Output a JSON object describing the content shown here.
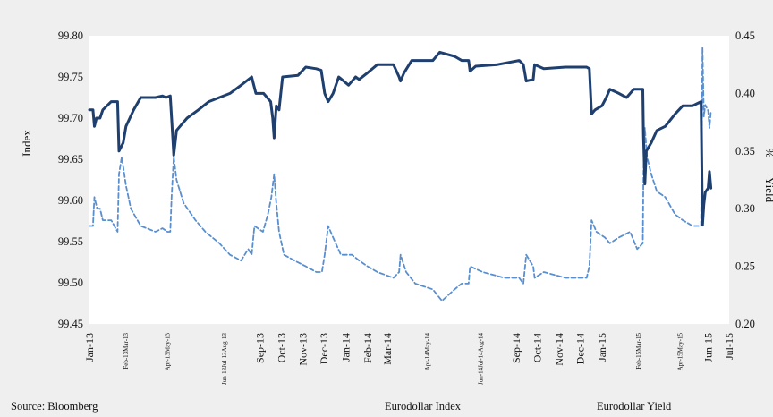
{
  "chart_data": {
    "type": "line",
    "title": "",
    "ylabel": "Index",
    "y2label_parts": [
      "%",
      "Yield"
    ],
    "ylim": [
      99.45,
      99.8
    ],
    "y_ticks": [
      "99.45",
      "99.50",
      "99.55",
      "99.60",
      "99.65",
      "99.70",
      "99.75",
      "99.80"
    ],
    "y2lim": [
      0.2,
      0.45
    ],
    "y2_ticks": [
      "0.20",
      "0.25",
      "0.30",
      "0.35",
      "0.40",
      "0.45"
    ],
    "x_range": [
      "2013-01-01",
      "2015-07-01"
    ],
    "x_ticks": [
      {
        "label": "Jan-13",
        "date": "2013-01-01",
        "size": "normal"
      },
      {
        "label": "Feb-13Mar-13",
        "date": "2013-02-20",
        "size": "tiny"
      },
      {
        "label": "Apr-13May-13",
        "date": "2013-04-20",
        "size": "tiny"
      },
      {
        "label": "Jun-13Jul-13Aug-13",
        "date": "2013-07-10",
        "size": "tiny"
      },
      {
        "label": "Sep-13",
        "date": "2013-09-01",
        "size": "normal"
      },
      {
        "label": "Oct-13",
        "date": "2013-10-01",
        "size": "normal"
      },
      {
        "label": "Nov-13",
        "date": "2013-11-01",
        "size": "normal"
      },
      {
        "label": "Dec-13",
        "date": "2013-12-01",
        "size": "normal"
      },
      {
        "label": "Jan-14",
        "date": "2014-01-01",
        "size": "normal"
      },
      {
        "label": "Feb-14",
        "date": "2014-02-01",
        "size": "normal"
      },
      {
        "label": "Mar-14",
        "date": "2014-03-01",
        "size": "normal"
      },
      {
        "label": "Apr-14May-14",
        "date": "2014-04-25",
        "size": "tiny"
      },
      {
        "label": "Jun-14Jul-14Aug-14",
        "date": "2014-07-10",
        "size": "tiny"
      },
      {
        "label": "Sep-14",
        "date": "2014-09-01",
        "size": "normal"
      },
      {
        "label": "Oct-14",
        "date": "2014-10-01",
        "size": "normal"
      },
      {
        "label": "Nov-14",
        "date": "2014-11-01",
        "size": "normal"
      },
      {
        "label": "Dec-14",
        "date": "2014-12-01",
        "size": "normal"
      },
      {
        "label": "Jan-15",
        "date": "2015-01-01",
        "size": "normal"
      },
      {
        "label": "Feb-15Mar-15",
        "date": "2015-02-20",
        "size": "tiny"
      },
      {
        "label": "Apr-15May-15",
        "date": "2015-04-20",
        "size": "tiny"
      },
      {
        "label": "Jun-15",
        "date": "2015-06-01",
        "size": "normal"
      },
      {
        "label": "Jul-15",
        "date": "2015-07-01",
        "size": "normal"
      }
    ],
    "grid": false,
    "legend_position": "bottom",
    "series": [
      {
        "name": "Eurodollar Index",
        "axis": "left",
        "color": "#1f3f6e",
        "style": "solid",
        "points": [
          [
            "2013-01-01",
            99.71
          ],
          [
            "2013-01-06",
            99.71
          ],
          [
            "2013-01-08",
            99.69
          ],
          [
            "2013-01-11",
            99.7
          ],
          [
            "2013-01-16",
            99.7
          ],
          [
            "2013-01-20",
            99.71
          ],
          [
            "2013-02-01",
            99.72
          ],
          [
            "2013-02-10",
            99.72
          ],
          [
            "2013-02-12",
            99.66
          ],
          [
            "2013-02-18",
            99.67
          ],
          [
            "2013-02-22",
            99.69
          ],
          [
            "2013-03-05",
            99.71
          ],
          [
            "2013-03-15",
            99.725
          ],
          [
            "2013-04-05",
            99.725
          ],
          [
            "2013-04-15",
            99.727
          ],
          [
            "2013-04-20",
            99.725
          ],
          [
            "2013-04-26",
            99.727
          ],
          [
            "2013-04-28",
            99.7
          ],
          [
            "2013-05-01",
            99.655
          ],
          [
            "2013-05-05",
            99.685
          ],
          [
            "2013-05-10",
            99.69
          ],
          [
            "2013-05-20",
            99.7
          ],
          [
            "2013-06-05",
            99.71
          ],
          [
            "2013-06-20",
            99.72
          ],
          [
            "2013-07-05",
            99.725
          ],
          [
            "2013-07-20",
            99.73
          ],
          [
            "2013-08-05",
            99.74
          ],
          [
            "2013-08-20",
            99.75
          ],
          [
            "2013-08-26",
            99.73
          ],
          [
            "2013-09-06",
            99.73
          ],
          [
            "2013-09-16",
            99.72
          ],
          [
            "2013-09-19",
            99.7
          ],
          [
            "2013-09-21",
            99.676
          ],
          [
            "2013-09-24",
            99.715
          ],
          [
            "2013-09-28",
            99.71
          ],
          [
            "2013-10-03",
            99.75
          ],
          [
            "2013-10-25",
            99.752
          ],
          [
            "2013-11-05",
            99.762
          ],
          [
            "2013-11-20",
            99.76
          ],
          [
            "2013-11-27",
            99.758
          ],
          [
            "2013-12-02",
            99.73
          ],
          [
            "2013-12-07",
            99.72
          ],
          [
            "2013-12-14",
            99.73
          ],
          [
            "2013-12-22",
            99.75
          ],
          [
            "2014-01-05",
            99.74
          ],
          [
            "2014-01-15",
            99.75
          ],
          [
            "2014-01-20",
            99.747
          ],
          [
            "2014-02-01",
            99.755
          ],
          [
            "2014-02-15",
            99.765
          ],
          [
            "2014-03-10",
            99.765
          ],
          [
            "2014-03-18",
            99.75
          ],
          [
            "2014-03-20",
            99.745
          ],
          [
            "2014-03-25",
            99.755
          ],
          [
            "2014-04-05",
            99.77
          ],
          [
            "2014-05-05",
            99.77
          ],
          [
            "2014-05-15",
            99.78
          ],
          [
            "2014-06-05",
            99.775
          ],
          [
            "2014-06-15",
            99.77
          ],
          [
            "2014-06-25",
            99.77
          ],
          [
            "2014-06-27",
            99.757
          ],
          [
            "2014-07-05",
            99.763
          ],
          [
            "2014-08-05",
            99.765
          ],
          [
            "2014-09-05",
            99.77
          ],
          [
            "2014-09-11",
            99.765
          ],
          [
            "2014-09-15",
            99.745
          ],
          [
            "2014-09-25",
            99.747
          ],
          [
            "2014-09-27",
            99.765
          ],
          [
            "2014-10-10",
            99.76
          ],
          [
            "2014-11-10",
            99.762
          ],
          [
            "2014-12-10",
            99.762
          ],
          [
            "2014-12-14",
            99.76
          ],
          [
            "2014-12-17",
            99.705
          ],
          [
            "2014-12-22",
            99.71
          ],
          [
            "2015-01-01",
            99.715
          ],
          [
            "2015-01-07",
            99.725
          ],
          [
            "2015-01-12",
            99.735
          ],
          [
            "2015-01-25",
            99.73
          ],
          [
            "2015-02-05",
            99.725
          ],
          [
            "2015-02-15",
            99.735
          ],
          [
            "2015-02-28",
            99.735
          ],
          [
            "2015-03-01",
            99.68
          ],
          [
            "2015-03-03",
            99.62
          ],
          [
            "2015-03-05",
            99.66
          ],
          [
            "2015-03-12",
            99.67
          ],
          [
            "2015-03-20",
            99.685
          ],
          [
            "2015-04-01",
            99.69
          ],
          [
            "2015-04-15",
            99.705
          ],
          [
            "2015-04-26",
            99.715
          ],
          [
            "2015-05-10",
            99.715
          ],
          [
            "2015-05-22",
            99.72
          ],
          [
            "2015-05-24",
            99.57
          ],
          [
            "2015-05-26",
            99.595
          ],
          [
            "2015-05-28",
            99.61
          ],
          [
            "2015-06-01",
            99.615
          ],
          [
            "2015-06-03",
            99.635
          ],
          [
            "2015-06-05",
            99.615
          ]
        ]
      },
      {
        "name": "Eurodollar Yield",
        "axis": "right",
        "color": "#5a8fcf",
        "style": "dashed",
        "points": [
          [
            "2013-01-01",
            0.285
          ],
          [
            "2013-01-06",
            0.285
          ],
          [
            "2013-01-08",
            0.31
          ],
          [
            "2013-01-12",
            0.3
          ],
          [
            "2013-01-16",
            0.3
          ],
          [
            "2013-01-20",
            0.29
          ],
          [
            "2013-02-01",
            0.29
          ],
          [
            "2013-02-10",
            0.28
          ],
          [
            "2013-02-12",
            0.33
          ],
          [
            "2013-02-16",
            0.345
          ],
          [
            "2013-02-22",
            0.32
          ],
          [
            "2013-03-01",
            0.3
          ],
          [
            "2013-03-15",
            0.285
          ],
          [
            "2013-04-05",
            0.28
          ],
          [
            "2013-04-15",
            0.283
          ],
          [
            "2013-04-22",
            0.28
          ],
          [
            "2013-04-26",
            0.28
          ],
          [
            "2013-04-28",
            0.31
          ],
          [
            "2013-05-01",
            0.345
          ],
          [
            "2013-05-05",
            0.325
          ],
          [
            "2013-05-15",
            0.305
          ],
          [
            "2013-06-01",
            0.29
          ],
          [
            "2013-06-15",
            0.28
          ],
          [
            "2013-07-05",
            0.27
          ],
          [
            "2013-07-20",
            0.26
          ],
          [
            "2013-08-05",
            0.255
          ],
          [
            "2013-08-15",
            0.265
          ],
          [
            "2013-08-20",
            0.26
          ],
          [
            "2013-08-24",
            0.285
          ],
          [
            "2013-09-05",
            0.28
          ],
          [
            "2013-09-12",
            0.295
          ],
          [
            "2013-09-17",
            0.31
          ],
          [
            "2013-09-21",
            0.33
          ],
          [
            "2013-09-24",
            0.305
          ],
          [
            "2013-09-28",
            0.28
          ],
          [
            "2013-10-05",
            0.26
          ],
          [
            "2013-10-20",
            0.255
          ],
          [
            "2013-11-05",
            0.25
          ],
          [
            "2013-11-20",
            0.245
          ],
          [
            "2013-11-28",
            0.245
          ],
          [
            "2013-12-02",
            0.26
          ],
          [
            "2013-12-07",
            0.285
          ],
          [
            "2013-12-14",
            0.275
          ],
          [
            "2013-12-25",
            0.26
          ],
          [
            "2014-01-10",
            0.26
          ],
          [
            "2014-01-20",
            0.255
          ],
          [
            "2014-02-01",
            0.25
          ],
          [
            "2014-02-15",
            0.245
          ],
          [
            "2014-03-10",
            0.24
          ],
          [
            "2014-03-18",
            0.245
          ],
          [
            "2014-03-20",
            0.26
          ],
          [
            "2014-03-28",
            0.245
          ],
          [
            "2014-04-10",
            0.235
          ],
          [
            "2014-05-05",
            0.23
          ],
          [
            "2014-05-18",
            0.22
          ],
          [
            "2014-06-05",
            0.23
          ],
          [
            "2014-06-15",
            0.235
          ],
          [
            "2014-06-25",
            0.235
          ],
          [
            "2014-06-27",
            0.25
          ],
          [
            "2014-07-15",
            0.245
          ],
          [
            "2014-08-15",
            0.24
          ],
          [
            "2014-09-05",
            0.24
          ],
          [
            "2014-09-11",
            0.235
          ],
          [
            "2014-09-15",
            0.26
          ],
          [
            "2014-09-25",
            0.25
          ],
          [
            "2014-09-27",
            0.24
          ],
          [
            "2014-10-10",
            0.245
          ],
          [
            "2014-11-10",
            0.24
          ],
          [
            "2014-12-10",
            0.24
          ],
          [
            "2014-12-14",
            0.25
          ],
          [
            "2014-12-17",
            0.29
          ],
          [
            "2014-12-24",
            0.28
          ],
          [
            "2015-01-05",
            0.275
          ],
          [
            "2015-01-12",
            0.27
          ],
          [
            "2015-01-25",
            0.275
          ],
          [
            "2015-02-10",
            0.28
          ],
          [
            "2015-02-20",
            0.265
          ],
          [
            "2015-02-28",
            0.27
          ],
          [
            "2015-03-01",
            0.33
          ],
          [
            "2015-03-03",
            0.37
          ],
          [
            "2015-03-06",
            0.345
          ],
          [
            "2015-03-12",
            0.33
          ],
          [
            "2015-03-20",
            0.315
          ],
          [
            "2015-04-01",
            0.31
          ],
          [
            "2015-04-15",
            0.295
          ],
          [
            "2015-04-26",
            0.29
          ],
          [
            "2015-05-10",
            0.285
          ],
          [
            "2015-05-22",
            0.285
          ],
          [
            "2015-05-24",
            0.44
          ],
          [
            "2015-05-26",
            0.38
          ],
          [
            "2015-05-28",
            0.39
          ],
          [
            "2015-06-01",
            0.385
          ],
          [
            "2015-06-03",
            0.37
          ],
          [
            "2015-06-05",
            0.385
          ]
        ]
      }
    ]
  },
  "footer": {
    "source": "Source: Bloomberg"
  }
}
